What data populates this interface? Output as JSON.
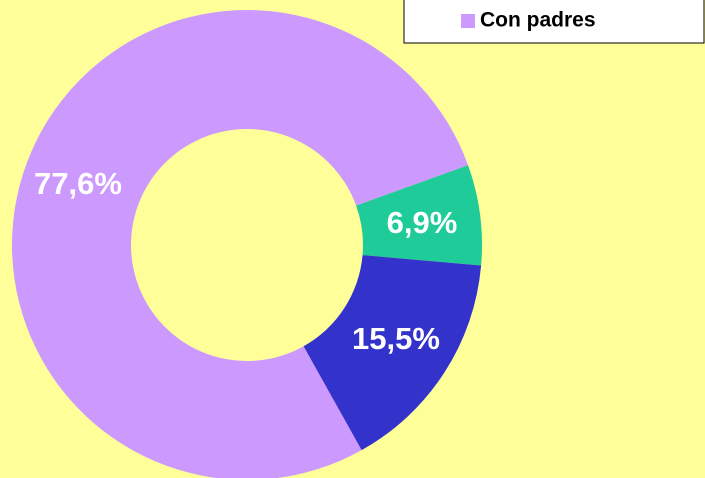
{
  "chart_data": {
    "type": "donut",
    "categories": [
      "Con padres",
      null,
      null
    ],
    "values": [
      77.6,
      6.9,
      15.5
    ],
    "value_labels": [
      "77,6%",
      "6,9%",
      "15,5%"
    ],
    "colors": [
      "#cc99ff",
      "#1fcc99",
      "#3333cc"
    ],
    "legend": "top-right"
  }
}
